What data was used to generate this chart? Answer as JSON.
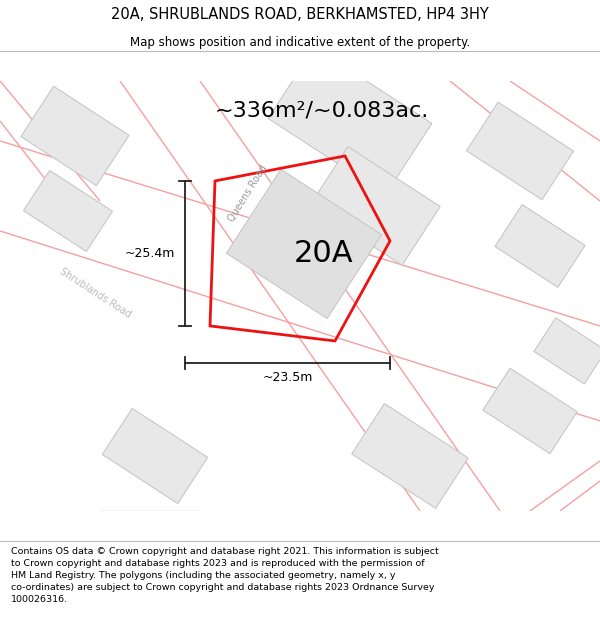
{
  "title": "20A, SHRUBLANDS ROAD, BERKHAMSTED, HP4 3HY",
  "subtitle": "Map shows position and indicative extent of the property.",
  "area_label": "~336m²/~0.083ac.",
  "plot_label": "20A",
  "dim_horizontal": "~23.5m",
  "dim_vertical": "~25.4m",
  "road_label_1": "Queens Road",
  "road_label_2": "Shrublands Road",
  "footer": "Contains OS data © Crown copyright and database right 2021. This information is subject\nto Crown copyright and database rights 2023 and is reproduced with the permission of\nHM Land Registry. The polygons (including the associated geometry, namely x, y\nco-ordinates) are subject to Crown copyright and database rights 2023 Ordnance Survey\n100026316.",
  "bg_color": "#ffffff",
  "map_bg": "#ffffff",
  "building_fill": "#e8e8e8",
  "building_edge": "#c8c8c8",
  "highlight_fill": "#e0e0e0",
  "highlight_edge": "#ee1111",
  "road_line_color": "#f5a0a0",
  "dim_line_color": "#222222",
  "title_fontsize": 10.5,
  "subtitle_fontsize": 8.5,
  "area_fontsize": 16,
  "plot_label_fontsize": 22,
  "dim_fontsize": 9,
  "road_label_fontsize": 7,
  "footer_fontsize": 6.8
}
